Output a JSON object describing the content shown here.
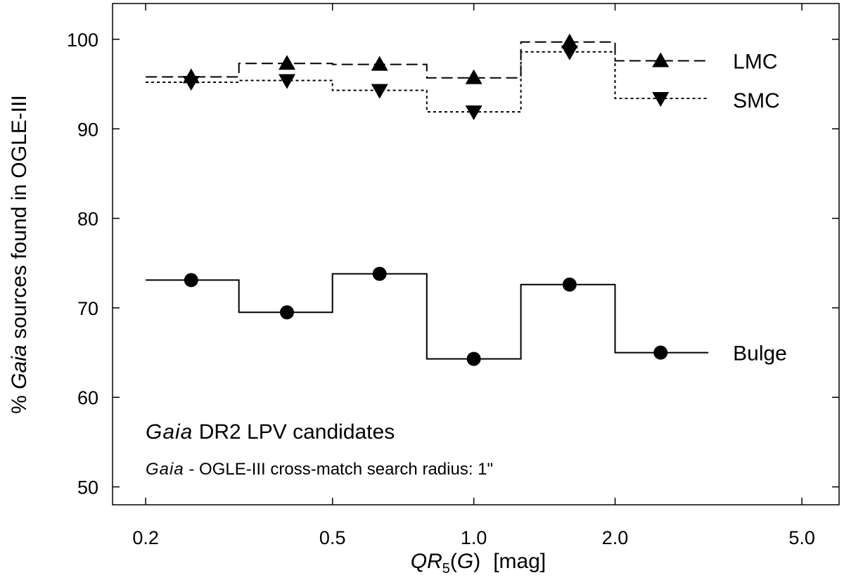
{
  "chart_data": {
    "type": "line",
    "xscale": "log",
    "xlim": [
      0.17,
      6.0
    ],
    "ylim": [
      48,
      104
    ],
    "grid": false,
    "xticks": [
      0.2,
      0.5,
      1.0,
      2.0,
      5.0
    ],
    "xtick_labels": [
      "0.2",
      "0.5",
      "1.0",
      "2.0",
      "5.0"
    ],
    "yticks": [
      50,
      60,
      70,
      80,
      90,
      100
    ],
    "ytick_labels": [
      "50",
      "60",
      "70",
      "80",
      "90",
      "100"
    ],
    "xlabel": {
      "italic": "QR",
      "sub": "5",
      "paren_open": "(",
      "var": "G",
      "paren_close": ")",
      "unit": "[mag]"
    },
    "ylabel": {
      "prefix": "% ",
      "italic": "Gaia",
      "rest": " sources found in OGLE-III"
    },
    "annotations": {
      "line1_italic": "Gaia",
      "line1_rest": " DR2 LPV candidates",
      "line2_italic": "Gaia",
      "line2_rest": " - OGLE-III cross-match search radius: 1\""
    },
    "bin_edges": [
      0.2,
      0.316,
      0.5,
      0.794,
      1.26,
      2.0,
      3.16
    ],
    "series": [
      {
        "name": "LMC",
        "line": "dashed",
        "marker": "triangle-up",
        "x": [
          0.25,
          0.4,
          0.63,
          1.0,
          1.6,
          2.5
        ],
        "y": [
          95.8,
          97.3,
          97.2,
          95.7,
          99.7,
          97.6
        ]
      },
      {
        "name": "SMC",
        "line": "dotted",
        "marker": "triangle-down",
        "x": [
          0.25,
          0.4,
          0.63,
          1.0,
          1.6,
          2.5
        ],
        "y": [
          95.2,
          95.4,
          94.3,
          91.9,
          98.6,
          93.4
        ]
      },
      {
        "name": "Bulge",
        "line": "solid",
        "marker": "circle",
        "x": [
          0.25,
          0.4,
          0.63,
          1.0,
          1.6,
          2.5
        ],
        "y": [
          73.1,
          69.5,
          73.8,
          64.3,
          72.6,
          65.0
        ]
      }
    ]
  }
}
